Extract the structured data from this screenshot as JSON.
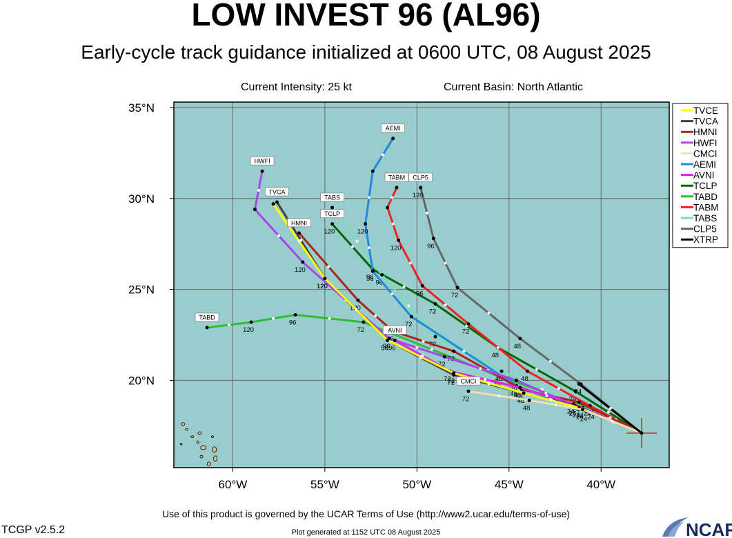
{
  "header": {
    "title": "LOW INVEST 96 (AL96)",
    "subtitle": "Early-cycle track guidance initialized at 0600 UTC, 08 August 2025",
    "current_intensity": "Current Intensity: 25 kt",
    "current_basin": "Current Basin: North Atlantic"
  },
  "footer": {
    "terms": "Use of this product is governed by the UCAR Terms of Use (http://www2.ucar.edu/terms-of-use)",
    "generated": "Plot generated at 1152 UTC   08 August 2025",
    "version": "TCGP v2.5.2",
    "logo_text": "NCAR"
  },
  "map": {
    "lon_ticks": [
      "60°W",
      "55°W",
      "50°W",
      "45°W",
      "40°W"
    ],
    "lat_ticks": [
      "35°N",
      "30°N",
      "25°N",
      "20°N"
    ],
    "ocean_color": "#99cccc",
    "land_color": "#d9b98c",
    "grid_color": "#666666"
  },
  "chart_data": {
    "type": "line",
    "extent": {
      "lon": [
        -63.2,
        -36.3
      ],
      "lat": [
        15.2,
        35.3
      ]
    },
    "storm_position": {
      "lon": -37.8,
      "lat": 17.1
    },
    "hour_marks": [
      "24",
      "48",
      "72",
      "96",
      "120"
    ],
    "series": [
      {
        "name": "TVCE",
        "color": "#ffff00",
        "tag": "",
        "points": [
          [
            -37.8,
            17.1
          ],
          [
            -41.2,
            18.5
          ],
          [
            -44.2,
            19.3
          ],
          [
            -48.0,
            20.4
          ],
          [
            -51.6,
            22.2
          ],
          [
            -55.0,
            25.6
          ],
          [
            -57.8,
            29.7
          ]
        ]
      },
      {
        "name": "TVCA",
        "color": "#404040",
        "tag": "TVCA",
        "points": [
          [
            -37.8,
            17.1
          ],
          [
            -41.4,
            18.6
          ],
          [
            -44.2,
            19.3
          ],
          [
            -48.0,
            20.3
          ],
          [
            -51.6,
            22.2
          ],
          [
            -55.0,
            25.6
          ],
          [
            -57.6,
            29.8
          ]
        ]
      },
      {
        "name": "HMNI",
        "color": "#aa2222",
        "tag": "HMNI",
        "points": [
          [
            -37.8,
            17.1
          ],
          [
            -41.2,
            18.8
          ],
          [
            -44.3,
            19.5
          ],
          [
            -48.0,
            21.6
          ],
          [
            -51.3,
            22.7
          ],
          [
            -53.2,
            24.4
          ],
          [
            -56.4,
            28.1
          ]
        ]
      },
      {
        "name": "HWFI",
        "color": "#aa44ee",
        "tag": "HWFI",
        "points": [
          [
            -37.8,
            17.1
          ],
          [
            -41.4,
            18.6
          ],
          [
            -44.6,
            20.0
          ],
          [
            -48.5,
            21.3
          ],
          [
            -51.5,
            22.3
          ],
          [
            -56.2,
            26.5
          ],
          [
            -58.8,
            29.4
          ],
          [
            -58.4,
            31.5
          ]
        ]
      },
      {
        "name": "CMCI",
        "color": "#f5deb3",
        "tag": "CMCI",
        "points": [
          [
            -37.8,
            17.1
          ],
          [
            -41.0,
            18.4
          ],
          [
            -43.9,
            18.9
          ],
          [
            -47.2,
            19.4
          ]
        ]
      },
      {
        "name": "AEMI",
        "color": "#2288dd",
        "tag": "AEMI",
        "points": [
          [
            -37.8,
            17.1
          ],
          [
            -40.8,
            18.3
          ],
          [
            -44.6,
            19.7
          ],
          [
            -50.3,
            23.5
          ],
          [
            -52.4,
            26.0
          ],
          [
            -52.8,
            28.6
          ],
          [
            -52.4,
            31.5
          ],
          [
            -51.3,
            33.3
          ]
        ]
      },
      {
        "name": "AVNI",
        "color": "#dd22ee",
        "tag": "AVNI",
        "points": [
          [
            -37.8,
            17.1
          ],
          [
            -41.5,
            18.7
          ],
          [
            -44.4,
            19.6
          ],
          [
            -48.2,
            20.5
          ],
          [
            -51.2,
            22.2
          ]
        ]
      },
      {
        "name": "TCLP",
        "color": "#006600",
        "tag": "TCLP",
        "points": [
          [
            -37.8,
            17.1
          ],
          [
            -41.4,
            19.4
          ],
          [
            -45.6,
            21.8
          ],
          [
            -49.0,
            24.2
          ],
          [
            -52.4,
            26.1
          ],
          [
            -54.6,
            28.6
          ]
        ]
      },
      {
        "name": "TABD",
        "color": "#33bb33",
        "tag": "TABD",
        "points": [
          [
            -37.8,
            17.1
          ],
          [
            -40.4,
            18.4
          ],
          [
            -45.5,
            20.2
          ],
          [
            -52.9,
            23.2
          ],
          [
            -56.6,
            23.6
          ],
          [
            -59.0,
            23.2
          ],
          [
            -61.4,
            22.9
          ]
        ]
      },
      {
        "name": "TABM",
        "color": "#ee2222",
        "tag": "TABM",
        "points": [
          [
            -37.8,
            17.1
          ],
          [
            -40.6,
            18.6
          ],
          [
            -44.0,
            20.5
          ],
          [
            -47.2,
            23.1
          ],
          [
            -49.7,
            25.2
          ],
          [
            -51.0,
            27.7
          ],
          [
            -51.6,
            29.5
          ],
          [
            -51.1,
            30.6
          ]
        ]
      },
      {
        "name": "TABS",
        "color": "#77ddbb",
        "tag": "TABS",
        "points": [
          [
            -37.8,
            17.1
          ],
          [
            -41.0,
            18.5
          ],
          [
            -45.4,
            20.5
          ],
          [
            -49.0,
            22.4
          ],
          [
            -51.9,
            25.8
          ],
          [
            -54.6,
            29.5
          ]
        ]
      },
      {
        "name": "CLP5",
        "color": "#666666",
        "tag": "CLP5",
        "points": [
          [
            -37.8,
            17.1
          ],
          [
            -41.1,
            19.8
          ],
          [
            -44.4,
            22.3
          ],
          [
            -47.8,
            25.1
          ],
          [
            -49.1,
            27.8
          ],
          [
            -49.8,
            30.6
          ]
        ]
      },
      {
        "name": "XTRP",
        "color": "#000000",
        "tag": "",
        "points": [
          [
            -37.8,
            17.1
          ],
          [
            -41.2,
            19.8
          ]
        ]
      }
    ]
  }
}
